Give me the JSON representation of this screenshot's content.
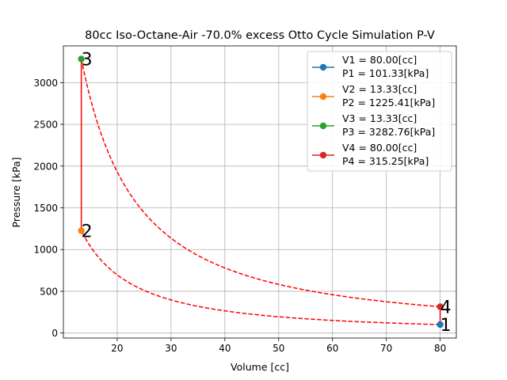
{
  "chart_data": {
    "type": "line",
    "title": "80cc Iso-Octane-Air -70.0% excess Otto Cycle Simulation P-V",
    "xlabel": "Volume [cc]",
    "ylabel": "Pressure [kPa]",
    "xlim": [
      10,
      83
    ],
    "ylim": [
      -60,
      3440
    ],
    "xticks": [
      20,
      30,
      40,
      50,
      60,
      70,
      80
    ],
    "yticks": [
      0,
      500,
      1000,
      1500,
      2000,
      2500,
      3000
    ],
    "grid": true,
    "legend_position": "top-right",
    "points": [
      {
        "label": "1",
        "volume": 80.0,
        "pressure": 101.33,
        "color": "#1f77b4",
        "legend": [
          "V1 = 80.00[cc]",
          "P1 = 101.33[kPa]"
        ]
      },
      {
        "label": "2",
        "volume": 13.33,
        "pressure": 1225.41,
        "color": "#ff7f0e",
        "legend": [
          "V2 = 13.33[cc]",
          "P2 = 1225.41[kPa]"
        ]
      },
      {
        "label": "3",
        "volume": 13.33,
        "pressure": 3282.76,
        "color": "#2ca02c",
        "legend": [
          "V3 = 13.33[cc]",
          "P3 = 3282.76[kPa]"
        ]
      },
      {
        "label": "4",
        "volume": 80.0,
        "pressure": 315.25,
        "color": "#d62728",
        "legend": [
          "V4 = 80.00[cc]",
          "P4 = 315.25[kPa]"
        ]
      }
    ],
    "cycle_line_color": "#ff0000",
    "process_curves": [
      {
        "from": "1",
        "to": "2",
        "style": "dashed"
      },
      {
        "from": "2",
        "to": "3",
        "style": "solid"
      },
      {
        "from": "3",
        "to": "4",
        "style": "dashed"
      },
      {
        "from": "4",
        "to": "1",
        "style": "solid"
      }
    ]
  }
}
